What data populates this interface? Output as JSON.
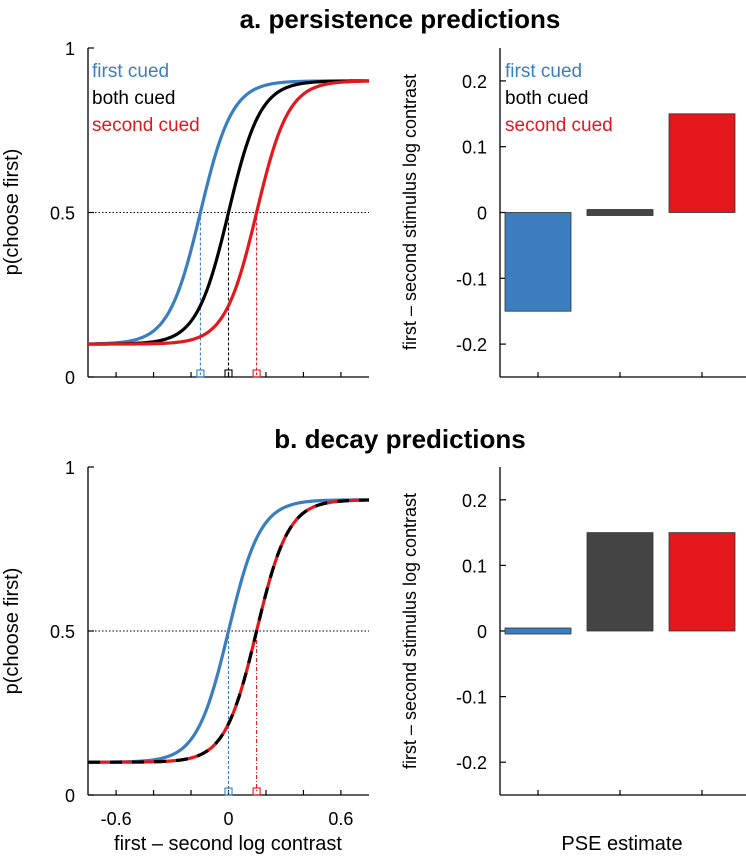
{
  "colors": {
    "first_cued": "#3a7ebf",
    "both_cued": "#000000",
    "second_cued": "#e4171c",
    "both_bar": "#444444"
  },
  "legend": {
    "first_cued": "first cued",
    "both_cued": "both cued",
    "second_cued": "second cued"
  },
  "chart_data": [
    {
      "id": "a_curves",
      "type": "line",
      "panel_title": "a. persistence predictions",
      "xlabel": "",
      "ylabel": "p(choose first)",
      "xlim": [
        -0.75,
        0.75
      ],
      "ylim": [
        0,
        1
      ],
      "yticks": [
        0,
        0.5,
        1
      ],
      "ytick_labels": [
        "0",
        "0.5",
        "1"
      ],
      "xticks": [
        -0.6,
        -0.4,
        -0.2,
        0,
        0.2,
        0.4,
        0.6
      ],
      "reference_line_y": 0.5,
      "function": "0.1 + 0.8 / (1 + exp(-(x - pse) / 0.085))",
      "series": [
        {
          "name": "first cued",
          "pse": -0.15
        },
        {
          "name": "both cued",
          "pse": 0.0
        },
        {
          "name": "second cued",
          "pse": 0.15
        }
      ]
    },
    {
      "id": "a_bars",
      "type": "bar",
      "ylabel": "first – second stimulus log contrast",
      "ylim": [
        -0.25,
        0.25
      ],
      "yticks": [
        -0.2,
        -0.1,
        0,
        0.1,
        0.2
      ],
      "ytick_labels": [
        "-0.2",
        "-0.1",
        "0",
        "0.1",
        "0.2"
      ],
      "categories": [
        "first cued",
        "both cued",
        "second cued"
      ],
      "values": [
        -0.15,
        0.0,
        0.15
      ]
    },
    {
      "id": "b_curves",
      "type": "line",
      "panel_title": "b. decay predictions",
      "xlabel": "first – second log contrast",
      "ylabel": "p(choose first)",
      "xlim": [
        -0.75,
        0.75
      ],
      "ylim": [
        0,
        1
      ],
      "yticks": [
        0,
        0.5,
        1
      ],
      "ytick_labels": [
        "0",
        "0.5",
        "1"
      ],
      "xticks": [
        -0.6,
        -0.4,
        -0.2,
        0,
        0.2,
        0.4,
        0.6
      ],
      "xtick_labels": [
        "-0.6",
        "",
        "",
        "0",
        "",
        "",
        "0.6"
      ],
      "reference_line_y": 0.5,
      "function": "0.1 + 0.8 / (1 + exp(-(x - pse) / 0.085))",
      "series": [
        {
          "name": "first cued",
          "pse": 0.0
        },
        {
          "name": "second cued",
          "pse": 0.15
        },
        {
          "name": "both cued",
          "pse": 0.15
        }
      ]
    },
    {
      "id": "b_bars",
      "type": "bar",
      "xlabel": "PSE estimate",
      "ylabel": "first – second stimulus log contrast",
      "ylim": [
        -0.25,
        0.25
      ],
      "yticks": [
        -0.2,
        -0.1,
        0,
        0.1,
        0.2
      ],
      "ytick_labels": [
        "-0.2",
        "-0.1",
        "0",
        "0.1",
        "0.2"
      ],
      "categories": [
        "first cued",
        "both cued",
        "second cued"
      ],
      "values": [
        0.0,
        0.15,
        0.15
      ]
    }
  ]
}
